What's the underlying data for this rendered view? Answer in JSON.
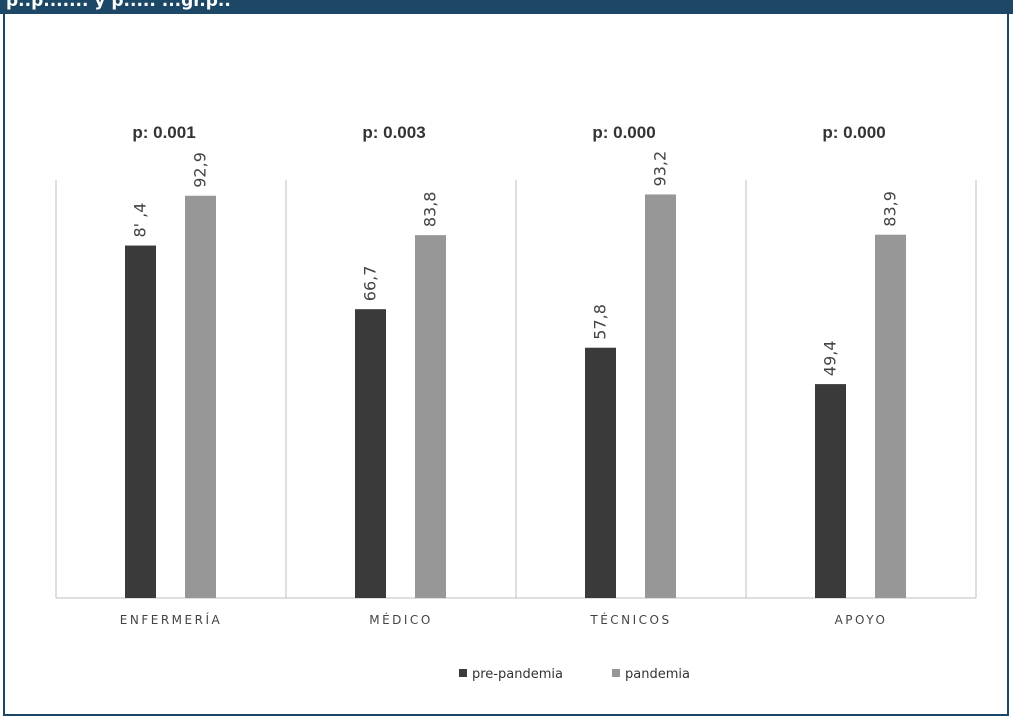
{
  "header": {
    "title_fragment": "p..p....... y p..... ...gr.p.."
  },
  "colors": {
    "pre_pandemia": "#3a3a3a",
    "pandemia": "#979797",
    "frame": "#1c4766",
    "axis": "#bfbfbf"
  },
  "chart_data": {
    "type": "bar",
    "categories": [
      "ENFERMERÍA",
      "MÉDICO",
      "TÉCNICOS",
      "APOYO"
    ],
    "series": [
      {
        "name": "pre-pandemia",
        "values": [
          81.4,
          66.7,
          57.8,
          49.4
        ],
        "labels": [
          "8' ,4",
          "66,7",
          "57,8",
          "49,4"
        ]
      },
      {
        "name": "pandemia",
        "values": [
          92.9,
          83.8,
          93.2,
          83.9
        ],
        "labels": [
          "92,9",
          "83,8",
          "93,2",
          "83,9"
        ]
      }
    ],
    "p_values": [
      "p: 0.001",
      "p: 0.003",
      "p: 0.000",
      "p: 0.000"
    ],
    "legend_position": "bottom-center",
    "ylim": [
      0,
      100
    ],
    "grid": false
  }
}
